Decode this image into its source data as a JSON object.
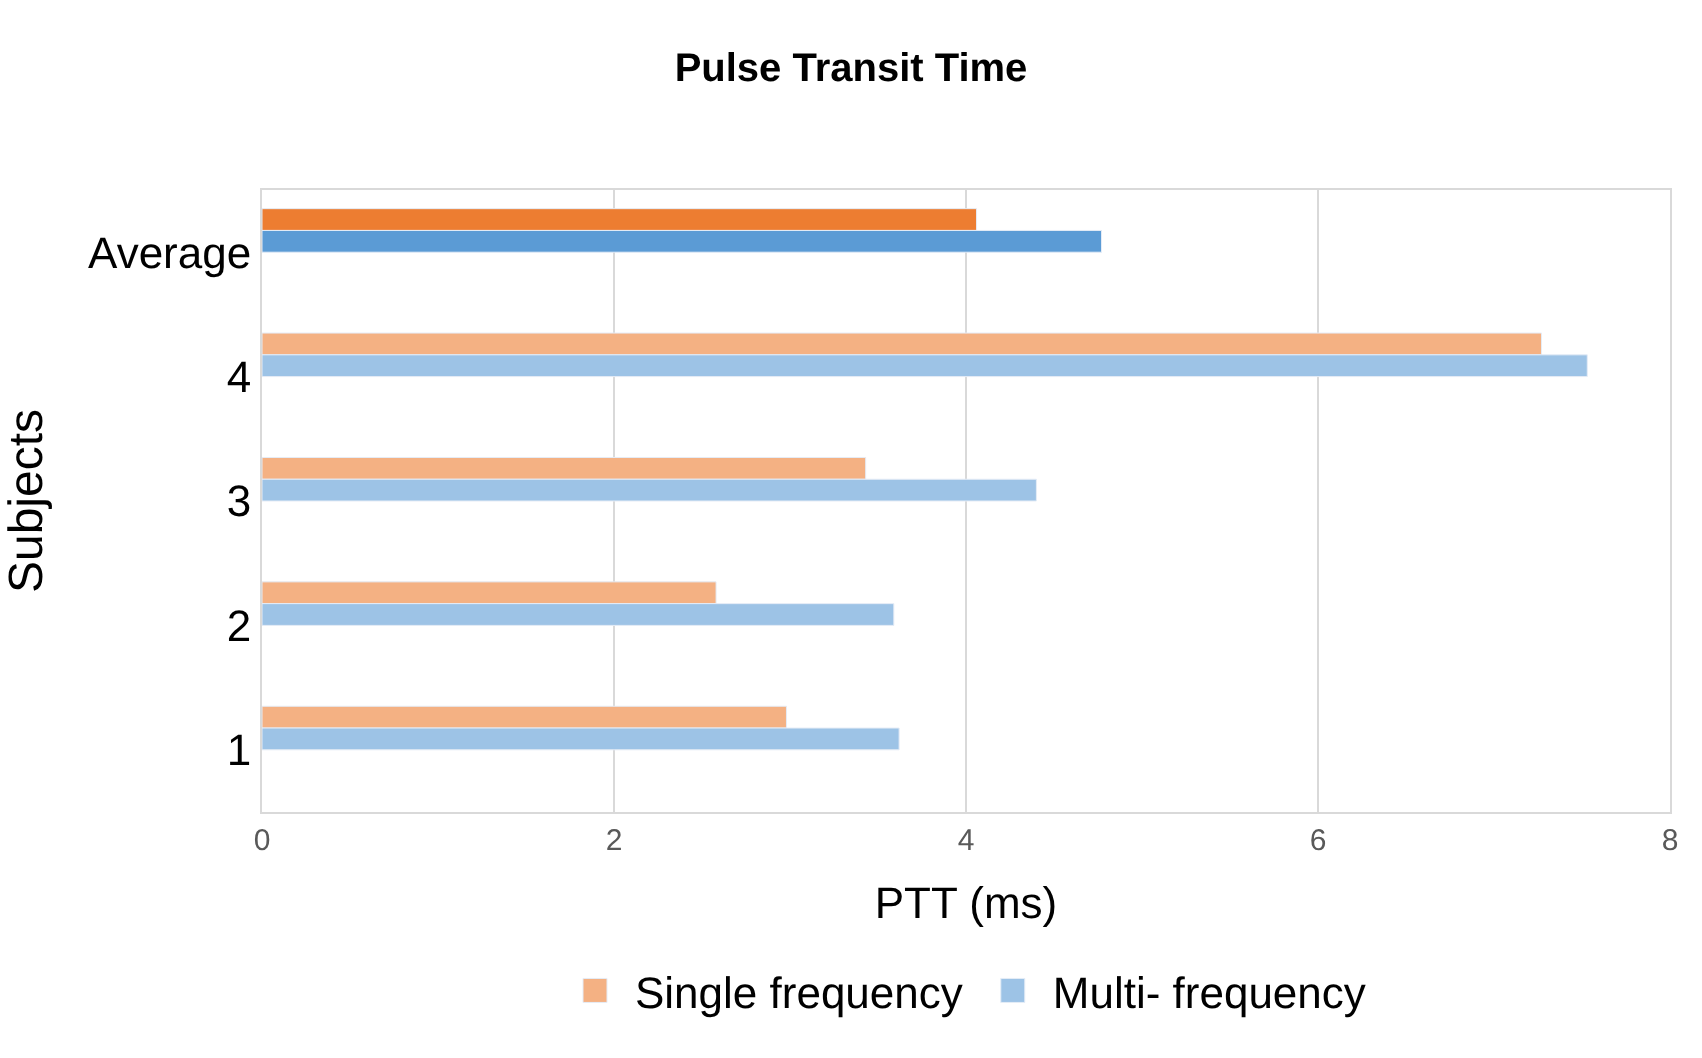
{
  "chart_data": {
    "type": "bar",
    "orientation": "horizontal",
    "title": "Pulse Transit Time",
    "xlabel": "PTT (ms)",
    "ylabel": "Subjects",
    "categories": [
      "Average",
      "4",
      "3",
      "2",
      "1"
    ],
    "series": [
      {
        "name": "Single frequency",
        "color": "#f4b183",
        "colors": [
          "#ed7d31",
          "#f4b183",
          "#f4b183",
          "#f4b183",
          "#f4b183"
        ],
        "values": [
          4.06,
          7.27,
          3.43,
          2.58,
          2.98
        ]
      },
      {
        "name": "Multi- frequency",
        "color": "#9dc3e6",
        "colors": [
          "#5b9bd5",
          "#9dc3e6",
          "#9dc3e6",
          "#9dc3e6",
          "#9dc3e6"
        ],
        "values": [
          4.77,
          7.53,
          4.4,
          3.59,
          3.62
        ]
      }
    ],
    "xlim": [
      0,
      8
    ],
    "xticks": [
      0,
      2,
      4,
      6,
      8
    ],
    "grid": "x",
    "legend": "bottom"
  }
}
